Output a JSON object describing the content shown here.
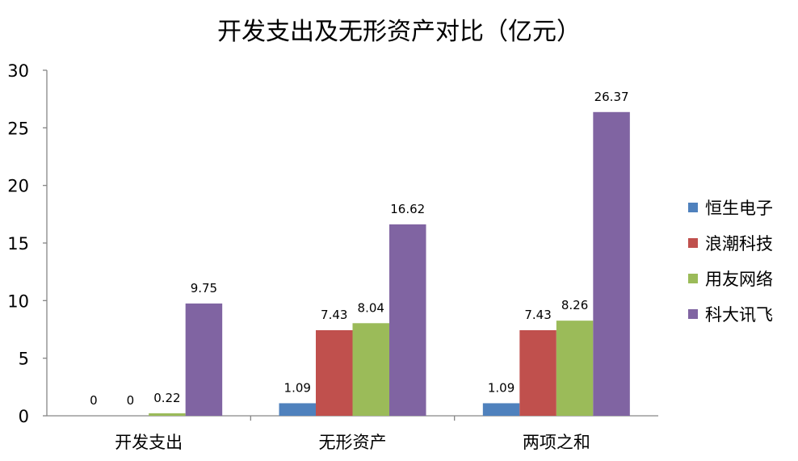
{
  "chart_data": {
    "type": "bar",
    "title": "开发支出及无形资产对比（亿元）",
    "categories": [
      "开发支出",
      "无形资产",
      "两项之和"
    ],
    "ylim": [
      0,
      30
    ],
    "yticks": [
      "0",
      "5",
      "10",
      "15",
      "20",
      "25",
      "30"
    ],
    "grid": false,
    "legend_position": "right",
    "series": [
      {
        "name": "恒生电子",
        "color": "#4F81BD",
        "values": [
          0,
          1.09,
          1.09
        ],
        "labels": [
          "0",
          "1.09",
          "1.09"
        ]
      },
      {
        "name": "浪潮科技",
        "color": "#C0504D",
        "values": [
          0,
          7.43,
          7.43
        ],
        "labels": [
          "0",
          "7.43",
          "7.43"
        ]
      },
      {
        "name": "用友网络",
        "color": "#9BBB59",
        "values": [
          0.22,
          8.04,
          8.26
        ],
        "labels": [
          "0.22",
          "8.04",
          "8.26"
        ]
      },
      {
        "name": "科大讯飞",
        "color": "#8064A2",
        "values": [
          9.75,
          16.62,
          26.37
        ],
        "labels": [
          "9.75",
          "16.62",
          "26.37"
        ]
      }
    ]
  }
}
